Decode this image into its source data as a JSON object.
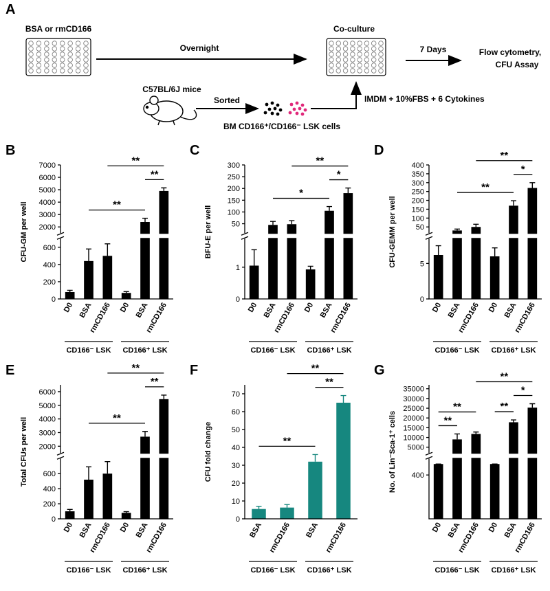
{
  "diagram": {
    "label": "A",
    "plate_label": "BSA or rmCD166",
    "arrow_label": "Overnight",
    "coculture_label": "Co-culture",
    "days_label": "7 Days",
    "assay_label": [
      "Flow cytometry,",
      "CFU Assay"
    ],
    "mice_label": "C57BL/6J mice",
    "sorted_label": "Sorted",
    "cells_label": "BM CD166⁺/CD166⁻ LSK cells",
    "medium_label": "IMDM + 10%FBS + 6 Cytokines"
  },
  "chart_data": [
    {
      "type": "bar",
      "panel": "B",
      "ylabel": "CFU-GM per well",
      "categories": [
        "D0",
        "BSA",
        "rmCD166",
        "D0",
        "BSA",
        "rmCD166"
      ],
      "groups": [
        "CD166⁻ LSK",
        "CD166⁺ LSK"
      ],
      "series": [
        {
          "color": "#000000",
          "values": [
            80,
            440,
            500,
            70,
            2400,
            4900
          ],
          "errors": [
            20,
            140,
            140,
            15,
            300,
            250
          ]
        }
      ],
      "ylim": [
        0,
        7000
      ],
      "ybreak": [
        700,
        1500
      ],
      "yticks": [
        0,
        200,
        400,
        600,
        2000,
        3000,
        4000,
        5000,
        6000,
        7000
      ],
      "brackets": [
        {
          "from": 4,
          "to": 5,
          "label": "**"
        },
        {
          "from": 1,
          "to": 4,
          "label": "**"
        },
        {
          "from": 2,
          "to": 5,
          "label": "**"
        }
      ]
    },
    {
      "type": "bar",
      "panel": "C",
      "ylabel": "BFU-E per well",
      "categories": [
        "D0",
        "BSA",
        "rmCD166",
        "D0",
        "BSA",
        "rmCD166"
      ],
      "groups": [
        "CD166⁻ LSK",
        "CD166⁺ LSK"
      ],
      "series": [
        {
          "color": "#000000",
          "values": [
            1.05,
            45,
            48,
            0.93,
            105,
            180
          ],
          "errors": [
            0.5,
            15,
            15,
            0.1,
            18,
            22
          ]
        }
      ],
      "ylim": [
        0,
        300
      ],
      "ybreak": [
        1.9,
        10
      ],
      "yticks": [
        0,
        1,
        50,
        100,
        150,
        200,
        250,
        300
      ],
      "brackets": [
        {
          "from": 4,
          "to": 5,
          "label": "*"
        },
        {
          "from": 1,
          "to": 4,
          "label": "*"
        },
        {
          "from": 2,
          "to": 5,
          "label": "**"
        }
      ]
    },
    {
      "type": "bar",
      "panel": "D",
      "ylabel": "CFU-GEMM per well",
      "categories": [
        "D0",
        "BSA",
        "rmCD166",
        "D0",
        "BSA",
        "rmCD166"
      ],
      "groups": [
        "CD166⁻ LSK",
        "CD166⁺ LSK"
      ],
      "series": [
        {
          "color": "#000000",
          "values": [
            6.2,
            30,
            50,
            6,
            170,
            270
          ],
          "errors": [
            1.3,
            8,
            15,
            1.2,
            28,
            30
          ]
        }
      ],
      "ylim": [
        0,
        400
      ],
      "ybreak": [
        8.5,
        15
      ],
      "yticks": [
        0,
        5,
        50,
        100,
        150,
        200,
        250,
        300,
        350,
        400
      ],
      "brackets": [
        {
          "from": 4,
          "to": 5,
          "label": "*"
        },
        {
          "from": 1,
          "to": 4,
          "label": "**"
        },
        {
          "from": 2,
          "to": 5,
          "label": "**"
        }
      ]
    },
    {
      "type": "bar",
      "panel": "E",
      "ylabel": "Total CFUs per well",
      "categories": [
        "D0",
        "BSA",
        "rmCD166",
        "D0",
        "BSA",
        "rmCD166"
      ],
      "groups": [
        "CD166⁻ LSK",
        "CD166⁺ LSK"
      ],
      "series": [
        {
          "color": "#000000",
          "values": [
            100,
            520,
            600,
            80,
            2700,
            5450
          ],
          "errors": [
            25,
            170,
            160,
            15,
            380,
            300
          ]
        }
      ],
      "ylim": [
        0,
        6500
      ],
      "ybreak": [
        800,
        1500
      ],
      "yticks": [
        0,
        200,
        400,
        600,
        2000,
        3000,
        4000,
        5000,
        6000
      ],
      "brackets": [
        {
          "from": 4,
          "to": 5,
          "label": "**"
        },
        {
          "from": 1,
          "to": 4,
          "label": "**"
        },
        {
          "from": 2,
          "to": 5,
          "label": "**"
        }
      ]
    },
    {
      "type": "bar",
      "panel": "F",
      "ylabel": "CFU fold change",
      "categories": [
        "BSA",
        "rmCD166",
        "BSA",
        "rmCD166"
      ],
      "groups": [
        "CD166⁻ LSK",
        "CD166⁺ LSK"
      ],
      "series": [
        {
          "color": "#16877f",
          "values": [
            5.5,
            6.3,
            32,
            65
          ],
          "errors": [
            1.5,
            1.7,
            4,
            4
          ]
        }
      ],
      "ylim": [
        0,
        75
      ],
      "yticks": [
        0,
        10,
        20,
        30,
        40,
        50,
        60,
        70
      ],
      "brackets": [
        {
          "from": 0,
          "to": 2,
          "label": "**"
        },
        {
          "from": 2,
          "to": 3,
          "label": "**"
        },
        {
          "from": 1,
          "to": 3,
          "label": "**"
        }
      ]
    },
    {
      "type": "bar",
      "panel": "G",
      "ylabel": "No. of Lin⁻Sca-1⁺ cells",
      "categories": [
        "D0",
        "BSA",
        "rmCD166",
        "D0",
        "BSA",
        "rmCD166"
      ],
      "groups": [
        "CD166⁻ LSK",
        "CD166⁺ LSK"
      ],
      "series": [
        {
          "color": "#000000",
          "values": [
            500,
            9000,
            11800,
            500,
            17800,
            25300
          ],
          "errors": [
            0,
            2800,
            1000,
            0,
            1200,
            2000
          ]
        }
      ],
      "ylim": [
        0,
        37000
      ],
      "ybreak": [
        550,
        2000
      ],
      "yticks": [
        400,
        5000,
        10000,
        15000,
        20000,
        25000,
        30000,
        35000
      ],
      "brackets": [
        {
          "from": 0,
          "to": 1,
          "label": "**"
        },
        {
          "from": 0,
          "to": 2,
          "label": "**"
        },
        {
          "from": 3,
          "to": 4,
          "label": "**"
        },
        {
          "from": 4,
          "to": 5,
          "label": "*"
        },
        {
          "from": 2,
          "to": 5,
          "label": "**"
        }
      ]
    }
  ]
}
